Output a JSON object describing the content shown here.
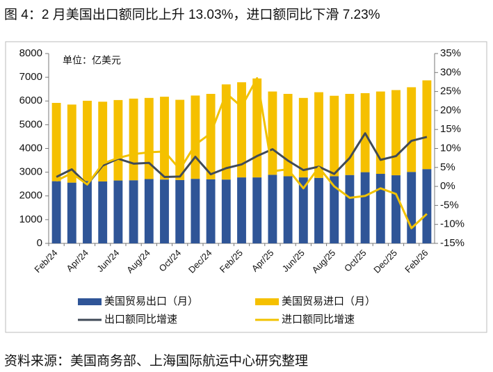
{
  "title": "图 4：2 月美国出口额同比上升 13.03%，进口额同比下滑 7.23%",
  "source": "资料来源：美国商务部、上海国际航运中心研究整理",
  "chart_data": {
    "type": "bar-line",
    "unit_label": "单位：亿美元",
    "categories": [
      "Feb/24",
      null,
      "Apr/24",
      null,
      "Jun/24",
      null,
      "Aug/24",
      null,
      "Oct/24",
      null,
      "Dec/24",
      null,
      "Feb/25",
      null,
      "Apr/25",
      null,
      "Jun/25",
      null,
      "Aug/25",
      null,
      "Oct/25",
      null,
      "Dec/25",
      null,
      "Feb/26"
    ],
    "series": [
      {
        "name": "美国贸易出口（月）",
        "type": "bar",
        "color": "#2f5597",
        "values": [
          2620,
          2560,
          2630,
          2610,
          2650,
          2660,
          2710,
          2690,
          2670,
          2720,
          2700,
          2690,
          2780,
          2780,
          2890,
          2830,
          2780,
          2760,
          2830,
          2880,
          3000,
          2930,
          2870,
          3010,
          3130
        ]
      },
      {
        "name": "美国贸易进口（月）",
        "type": "bar",
        "color": "#f5c000",
        "values": [
          3300,
          3290,
          3380,
          3360,
          3390,
          3440,
          3420,
          3490,
          3380,
          3510,
          3600,
          4010,
          4010,
          4170,
          3510,
          3470,
          3350,
          3610,
          3390,
          3420,
          3330,
          3470,
          3590,
          3570,
          3740
        ]
      },
      {
        "name": "出口额同比增速",
        "type": "line",
        "axis": "y2",
        "color": "#404a57",
        "values": [
          2.5,
          4.5,
          0.5,
          5.5,
          7.3,
          6.0,
          6.2,
          2.5,
          2.6,
          7.8,
          3.2,
          4.8,
          5.8,
          8.0,
          9.8,
          6.8,
          4.3,
          5.2,
          3.3,
          7.5,
          14.0,
          7.0,
          8.0,
          12.0,
          13.03
        ]
      },
      {
        "name": "进口额同比增速",
        "type": "line",
        "axis": "y2",
        "color": "#f2c200",
        "values": [
          1.5,
          3.5,
          0.5,
          6.0,
          7.5,
          8.5,
          9.0,
          9.2,
          4.5,
          11.0,
          14.0,
          24.5,
          21.0,
          28.5,
          4.0,
          4.5,
          -0.5,
          5.0,
          0.0,
          -3.0,
          -2.5,
          -0.5,
          -2.0,
          -11.0,
          -7.23
        ]
      }
    ],
    "ylim": [
      0,
      8000
    ],
    "yticks": [
      0,
      1000,
      2000,
      3000,
      4000,
      5000,
      6000,
      7000,
      8000
    ],
    "y2lim": [
      -15,
      35
    ],
    "y2ticks": [
      {
        "value": -15,
        "label": "-15%"
      },
      {
        "value": -10,
        "label": "-10%"
      },
      {
        "value": -5,
        "label": "-5%"
      },
      {
        "value": 0,
        "label": "0%"
      },
      {
        "value": 5,
        "label": "5%"
      },
      {
        "value": 10,
        "label": "10%"
      },
      {
        "value": 15,
        "label": "15%"
      },
      {
        "value": 20,
        "label": "20%"
      },
      {
        "value": 25,
        "label": "25%"
      },
      {
        "value": 30,
        "label": "30%"
      },
      {
        "value": 35,
        "label": "35%"
      }
    ],
    "stacked": true,
    "grid": false
  }
}
